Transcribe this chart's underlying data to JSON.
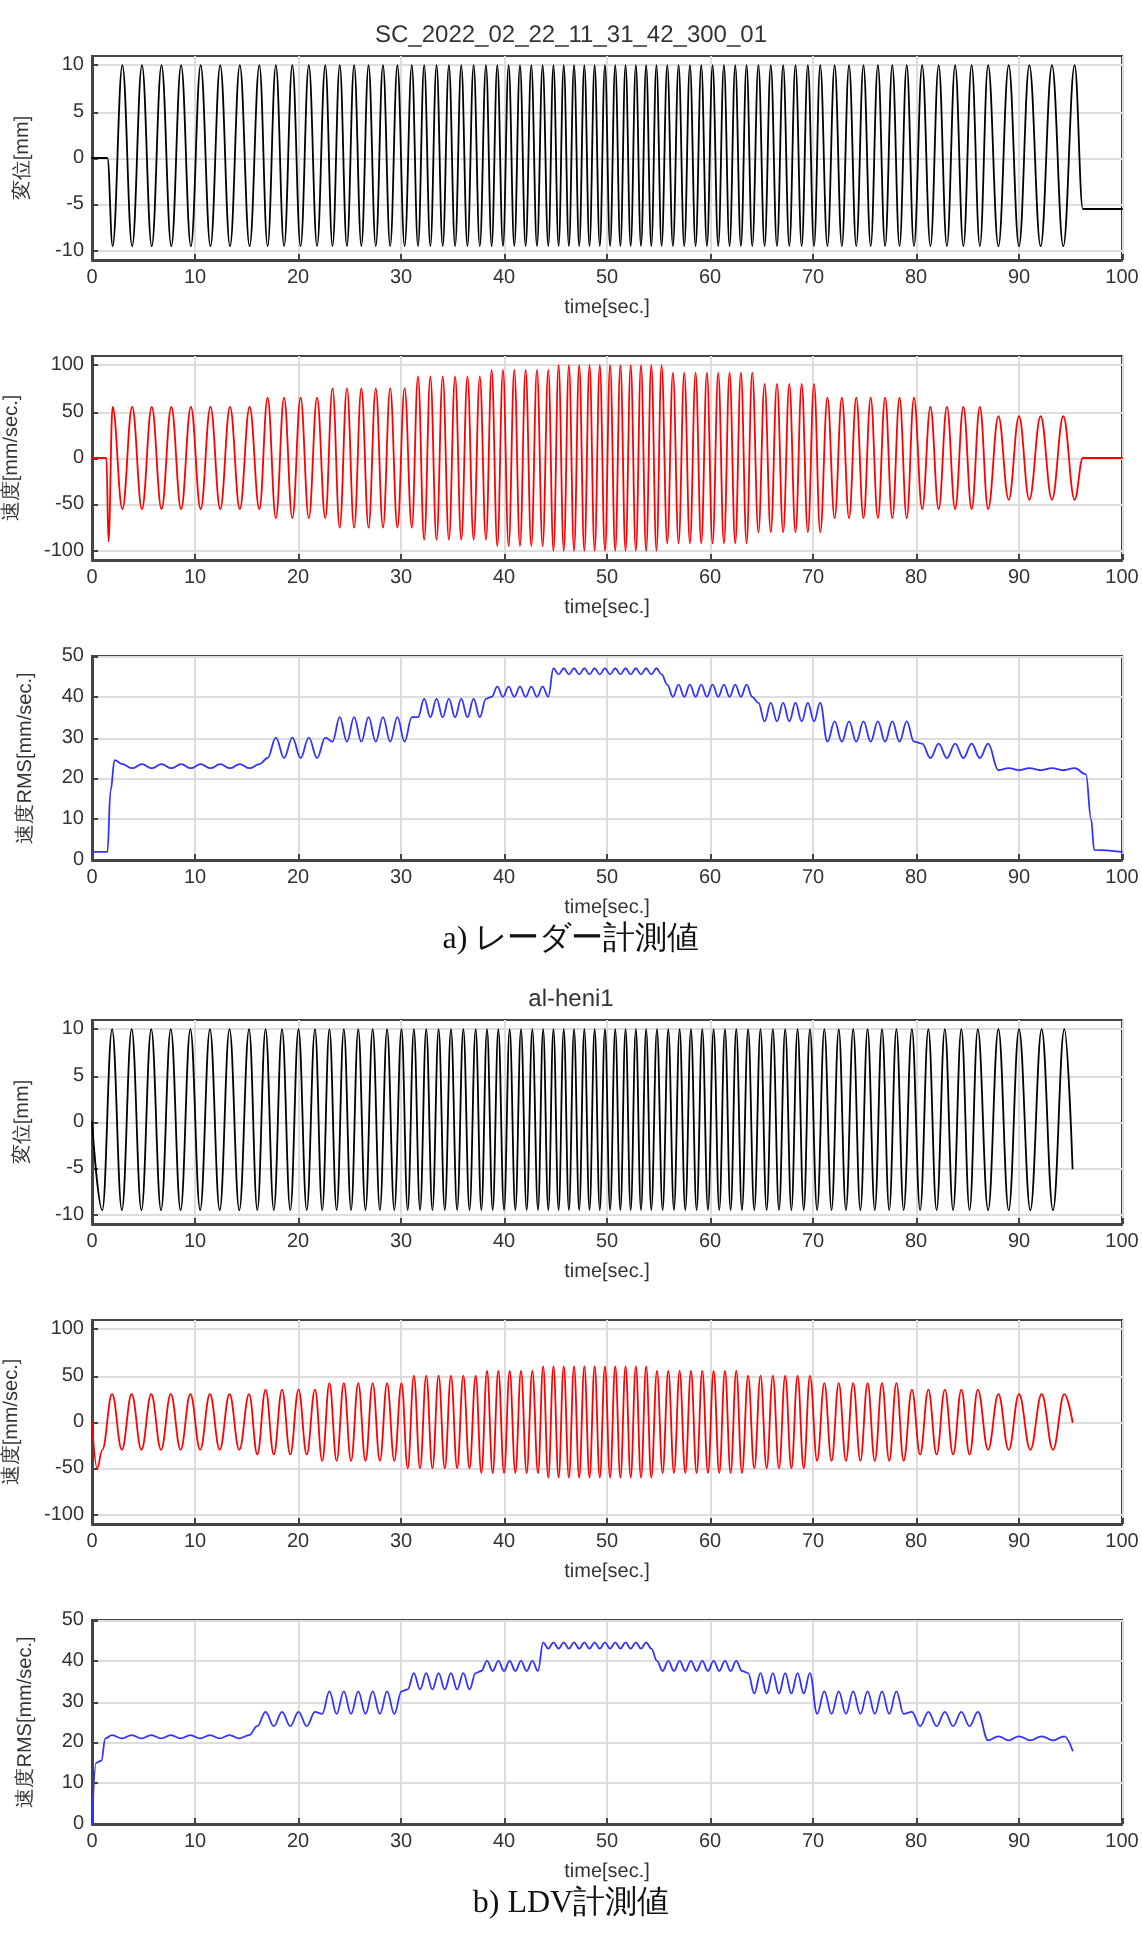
{
  "chart_data": [
    {
      "type": "line",
      "title": "SC_2022_02_22_11_31_42_300_01",
      "xlabel": "time[sec.]",
      "ylabel": "変位[mm]",
      "xlim": [
        0,
        100
      ],
      "xticks": [
        0,
        10,
        20,
        30,
        40,
        50,
        60,
        70,
        80,
        90,
        100
      ],
      "ylim": [
        -11,
        11
      ],
      "yticks": [
        -10,
        -5,
        0,
        5,
        10
      ],
      "grid": true,
      "marker": "none",
      "line_style": "solid",
      "x": [
        0,
        1.5,
        2,
        2.95,
        3.9,
        4.85,
        5.8,
        6.75,
        7.7,
        8.65,
        9.6,
        10.55,
        11.5,
        12.45,
        13.4,
        14.35,
        15.3,
        16.25,
        17.05,
        17.85,
        18.65,
        19.45,
        20.25,
        21.05,
        21.85,
        22.65,
        23.35,
        24.05,
        24.75,
        25.45,
        26.15,
        26.85,
        27.55,
        28.25,
        28.95,
        29.65,
        30.35,
        31.05,
        31.65,
        32.25,
        32.85,
        33.45,
        34.05,
        34.65,
        35.25,
        35.85,
        36.45,
        37.05,
        37.65,
        38.25,
        38.8,
        39.35,
        39.9,
        40.45,
        41,
        41.55,
        42.1,
        42.65,
        43.2,
        43.75,
        44.3,
        44.8,
        45.3,
        45.8,
        46.3,
        46.8,
        47.3,
        47.8,
        48.3,
        48.8,
        49.3,
        49.8,
        50.3,
        50.8,
        51.3,
        51.8,
        52.3,
        52.8,
        53.3,
        53.8,
        54.3,
        54.8,
        55.3,
        55.85,
        56.4,
        56.95,
        57.5,
        58.05,
        58.6,
        59.15,
        59.7,
        60.25,
        60.8,
        61.35,
        61.9,
        62.45,
        63,
        63.55,
        64.1,
        64.7,
        65.3,
        65.9,
        66.5,
        67.1,
        67.7,
        68.3,
        68.9,
        69.5,
        70.1,
        70.7,
        71.4,
        72.1,
        72.8,
        73.5,
        74.2,
        74.9,
        75.6,
        76.3,
        77,
        77.7,
        78.4,
        79.1,
        79.8,
        80.6,
        81.4,
        82.2,
        83,
        83.8,
        84.6,
        85.4,
        86.2,
        87,
        88,
        89,
        90,
        91,
        92.1,
        93.2,
        94.3,
        95.4,
        96.2,
        100
      ],
      "series": [
        {
          "color": "#000000",
          "values": [
            0,
            0,
            -9.5,
            10,
            -9.5,
            10,
            -9.5,
            10,
            -9.5,
            10,
            -9.5,
            10,
            -9.5,
            10,
            -9.5,
            10,
            -9.5,
            10,
            -9.5,
            10,
            -9.5,
            10,
            -9.5,
            10,
            -9.5,
            10,
            -9.5,
            10,
            -9.5,
            10,
            -9.5,
            10,
            -9.5,
            10,
            -9.5,
            10,
            -9.5,
            10,
            -9.5,
            10,
            -9.5,
            10,
            -9.5,
            10,
            -9.5,
            10,
            -9.5,
            10,
            -9.5,
            10,
            -9.5,
            10,
            -9.5,
            10,
            -9.5,
            10,
            -9.5,
            10,
            -9.5,
            10,
            -9.5,
            10,
            -9.5,
            10,
            -9.5,
            10,
            -9.5,
            10,
            -9.5,
            10,
            -9.5,
            10,
            -9.5,
            10,
            -9.5,
            10,
            -9.5,
            10,
            -9.5,
            10,
            -9.5,
            10,
            -9.5,
            10,
            -9.5,
            10,
            -9.5,
            10,
            -9.5,
            10,
            -9.5,
            10,
            -9.5,
            10,
            -9.5,
            10,
            -9.5,
            10,
            -9.5,
            10,
            -9.5,
            10,
            -9.5,
            10,
            -9.5,
            10,
            -9.5,
            10,
            -9.5,
            10,
            -9.5,
            10,
            -9.5,
            10,
            -9.5,
            10,
            -9.5,
            10,
            -9.5,
            10,
            -9.5,
            10,
            -9.5,
            10,
            -9.5,
            10,
            -9.5,
            10,
            -9.5,
            10,
            -9.5,
            10,
            -9.5,
            10,
            -9.5,
            10,
            -9.5,
            10,
            -9.5,
            10,
            -5.5,
            -5.5
          ]
        }
      ]
    },
    {
      "type": "line",
      "xlabel": "time[sec.]",
      "ylabel": "速度[mm/sec.]",
      "xlim": [
        0,
        100
      ],
      "xticks": [
        0,
        10,
        20,
        30,
        40,
        50,
        60,
        70,
        80,
        90,
        100
      ],
      "ylim": [
        -110,
        110
      ],
      "yticks": [
        -100,
        -50,
        0,
        50,
        100
      ],
      "grid": true,
      "marker": "none",
      "line_style": "solid",
      "x": [
        0,
        1.4,
        1.6,
        2,
        2.95,
        3.9,
        4.85,
        5.8,
        6.75,
        7.7,
        8.65,
        9.6,
        10.55,
        11.5,
        12.45,
        13.4,
        14.35,
        15.3,
        16.25,
        17.05,
        17.85,
        18.65,
        19.45,
        20.25,
        21.05,
        21.85,
        22.65,
        23.35,
        24.05,
        24.75,
        25.45,
        26.15,
        26.85,
        27.55,
        28.25,
        28.95,
        29.65,
        30.35,
        31.05,
        31.65,
        32.25,
        32.85,
        33.45,
        34.05,
        34.65,
        35.25,
        35.85,
        36.45,
        37.05,
        37.65,
        38.25,
        38.8,
        39.35,
        39.9,
        40.45,
        41,
        41.55,
        42.1,
        42.65,
        43.2,
        43.75,
        44.3,
        44.8,
        45.3,
        45.8,
        46.3,
        46.8,
        47.3,
        47.8,
        48.3,
        48.8,
        49.3,
        49.8,
        50.3,
        50.8,
        51.3,
        51.8,
        52.3,
        52.8,
        53.3,
        53.8,
        54.3,
        54.8,
        55.3,
        55.85,
        56.4,
        56.95,
        57.5,
        58.05,
        58.6,
        59.15,
        59.7,
        60.25,
        60.8,
        61.35,
        61.9,
        62.45,
        63,
        63.55,
        64.1,
        64.7,
        65.3,
        65.9,
        66.5,
        67.1,
        67.7,
        68.3,
        68.9,
        69.5,
        70.1,
        70.7,
        71.4,
        72.1,
        72.8,
        73.5,
        74.2,
        74.9,
        75.6,
        76.3,
        77,
        77.7,
        78.4,
        79.1,
        79.8,
        80.6,
        81.4,
        82.2,
        83,
        83.8,
        84.6,
        85.4,
        86.2,
        87,
        88,
        89,
        90,
        91,
        92.1,
        93.2,
        94.3,
        95.4,
        96.2,
        100
      ],
      "series": [
        {
          "color": "#ff0000",
          "values": [
            0,
            0,
            -90,
            55,
            -55,
            55,
            -55,
            55,
            -55,
            55,
            -55,
            55,
            -55,
            55,
            -55,
            55,
            -55,
            55,
            -55,
            65,
            -65,
            65,
            -65,
            65,
            -65,
            65,
            -65,
            75,
            -75,
            75,
            -75,
            75,
            -75,
            75,
            -75,
            75,
            -75,
            75,
            -75,
            88,
            -88,
            88,
            -88,
            88,
            -88,
            88,
            -88,
            88,
            -88,
            88,
            -88,
            95,
            -95,
            95,
            -95,
            95,
            -95,
            95,
            -95,
            95,
            -95,
            95,
            -100,
            100,
            -100,
            100,
            -100,
            100,
            -100,
            100,
            -100,
            100,
            -100,
            100,
            -100,
            100,
            -100,
            100,
            -100,
            100,
            -100,
            100,
            -100,
            100,
            -92,
            92,
            -92,
            92,
            -92,
            92,
            -92,
            92,
            -92,
            92,
            -92,
            92,
            -92,
            92,
            -92,
            92,
            -80,
            80,
            -80,
            80,
            -80,
            80,
            -80,
            80,
            -80,
            80,
            -80,
            65,
            -65,
            65,
            -65,
            65,
            -65,
            65,
            -65,
            65,
            -65,
            65,
            -65,
            65,
            -55,
            55,
            -55,
            55,
            -55,
            55,
            -55,
            55,
            -55,
            45,
            -45,
            45,
            -45,
            45,
            -45,
            45,
            -45,
            0,
            0
          ]
        }
      ]
    },
    {
      "type": "line",
      "xlabel": "time[sec.]",
      "ylabel": "速度RMS[mm/sec.]",
      "xlim": [
        0,
        100
      ],
      "xticks": [
        0,
        10,
        20,
        30,
        40,
        50,
        60,
        70,
        80,
        90,
        100
      ],
      "ylim": [
        0,
        50
      ],
      "yticks": [
        0,
        10,
        20,
        30,
        40,
        50
      ],
      "grid": true,
      "marker": "none",
      "line_style": "solid",
      "annotations": [
        "a) レーダー計測値"
      ],
      "x": [
        0,
        1.5,
        1.8,
        2.2,
        2.95,
        3.9,
        4.85,
        5.8,
        6.75,
        7.7,
        8.65,
        9.6,
        10.55,
        11.5,
        12.45,
        13.4,
        14.35,
        15.3,
        16.25,
        17.05,
        17.85,
        18.65,
        19.45,
        20.25,
        21.05,
        21.85,
        22.65,
        23.35,
        24.05,
        24.75,
        25.45,
        26.15,
        26.85,
        27.55,
        28.25,
        28.95,
        29.65,
        30.35,
        31.05,
        31.65,
        32.25,
        32.85,
        33.45,
        34.05,
        34.65,
        35.25,
        35.85,
        36.45,
        37.05,
        37.65,
        38.25,
        38.8,
        39.35,
        39.9,
        40.45,
        41,
        41.55,
        42.1,
        42.65,
        43.2,
        43.75,
        44.3,
        44.8,
        45.3,
        45.8,
        46.3,
        46.8,
        47.3,
        47.8,
        48.3,
        48.8,
        49.3,
        49.8,
        50.3,
        50.8,
        51.3,
        51.8,
        52.3,
        52.8,
        53.3,
        53.8,
        54.3,
        54.8,
        55.3,
        55.85,
        56.4,
        56.95,
        57.5,
        58.05,
        58.6,
        59.15,
        59.7,
        60.25,
        60.8,
        61.35,
        61.9,
        62.45,
        63,
        63.55,
        64.1,
        64.7,
        65.3,
        65.9,
        66.5,
        67.1,
        67.7,
        68.3,
        68.9,
        69.5,
        70.1,
        70.7,
        71.4,
        72.1,
        72.8,
        73.5,
        74.2,
        74.9,
        75.6,
        76.3,
        77,
        77.7,
        78.4,
        79.1,
        79.8,
        80.6,
        81.4,
        82.2,
        83,
        83.8,
        84.6,
        85.4,
        86.2,
        87,
        88,
        89,
        90,
        91,
        92.1,
        93.2,
        94.3,
        95.4,
        96.5,
        97,
        97.3,
        100
      ],
      "series": [
        {
          "color": "#3333ff",
          "values": [
            2,
            2,
            17,
            24.5,
            23.5,
            22.5,
            23.5,
            22.5,
            23.5,
            22.5,
            23.5,
            22.5,
            23.5,
            22.5,
            23.5,
            22.5,
            23.5,
            22.5,
            23.5,
            25,
            30,
            25,
            30,
            25,
            30,
            25,
            30,
            29,
            35,
            29,
            35,
            29,
            35,
            29,
            35,
            29,
            35,
            29,
            35,
            35,
            39.5,
            35,
            39.5,
            35,
            39.5,
            35,
            39.5,
            35,
            39.5,
            35,
            39.5,
            40,
            42.5,
            40,
            42.5,
            40,
            42.5,
            40,
            42.5,
            40,
            42.5,
            40,
            47,
            45.5,
            47,
            45.5,
            47,
            45.5,
            47,
            45.5,
            47,
            45.5,
            47,
            45.5,
            47,
            45.5,
            47,
            45.5,
            47,
            45.5,
            47,
            45.5,
            47,
            45.5,
            43,
            40,
            43,
            40,
            43,
            40,
            43,
            40,
            43,
            40,
            43,
            40,
            43,
            40,
            43,
            40,
            38.5,
            34,
            38.5,
            34,
            38.5,
            34,
            38.5,
            34,
            38.5,
            34,
            38.5,
            29,
            34,
            29,
            34,
            29,
            34,
            29,
            34,
            29,
            34,
            29,
            34,
            29,
            28.5,
            25,
            28.5,
            25,
            28.5,
            25,
            28.5,
            25,
            28.5,
            22,
            22.5,
            22,
            22.5,
            22,
            22.5,
            22,
            22.5,
            21,
            10,
            2.5,
            2
          ]
        }
      ]
    },
    {
      "type": "line",
      "title": "al-heni1",
      "xlabel": "time[sec.]",
      "ylabel": "変位[mm]",
      "xlim": [
        0,
        100
      ],
      "xticks": [
        0,
        10,
        20,
        30,
        40,
        50,
        60,
        70,
        80,
        90,
        100
      ],
      "ylim": [
        -11,
        11
      ],
      "yticks": [
        -10,
        -5,
        0,
        5,
        10
      ],
      "grid": true,
      "marker": "none",
      "line_style": "solid",
      "x": [
        0,
        1,
        1.95,
        2.9,
        3.85,
        4.8,
        5.75,
        6.7,
        7.65,
        8.6,
        9.55,
        10.5,
        11.45,
        12.4,
        13.35,
        14.3,
        15.25,
        16.05,
        16.85,
        17.65,
        18.45,
        19.25,
        20.05,
        20.85,
        21.65,
        22.35,
        23.05,
        23.75,
        24.45,
        25.15,
        25.85,
        26.55,
        27.25,
        27.95,
        28.65,
        29.35,
        30.05,
        30.65,
        31.25,
        31.85,
        32.45,
        33.05,
        33.65,
        34.25,
        34.85,
        35.45,
        36.05,
        36.65,
        37.25,
        37.8,
        38.35,
        38.9,
        39.45,
        40,
        40.55,
        41.1,
        41.65,
        42.2,
        42.75,
        43.3,
        43.8,
        44.3,
        44.8,
        45.3,
        45.8,
        46.3,
        46.8,
        47.3,
        47.8,
        48.3,
        48.8,
        49.3,
        49.8,
        50.3,
        50.8,
        51.3,
        51.8,
        52.3,
        52.8,
        53.3,
        53.8,
        54.3,
        54.85,
        55.4,
        55.95,
        56.5,
        57.05,
        57.6,
        58.15,
        58.7,
        59.25,
        59.8,
        60.35,
        60.9,
        61.45,
        62,
        62.55,
        63.1,
        63.7,
        64.3,
        64.9,
        65.5,
        66.1,
        66.7,
        67.3,
        67.9,
        68.5,
        69.1,
        69.7,
        70.4,
        71.1,
        71.8,
        72.5,
        73.2,
        73.9,
        74.6,
        75.3,
        76,
        76.7,
        77.4,
        78.1,
        78.8,
        79.6,
        80.4,
        81.2,
        82,
        82.8,
        83.6,
        84.4,
        85.2,
        86,
        87,
        88,
        89,
        90,
        91.1,
        92.2,
        93.3,
        94.4,
        95.2
      ],
      "series": [
        {
          "color": "#000000",
          "values": [
            0,
            -9.5,
            10,
            -9.5,
            10,
            -9.5,
            10,
            -9.5,
            10,
            -9.5,
            10,
            -9.5,
            10,
            -9.5,
            10,
            -9.5,
            10,
            -9.5,
            10,
            -9.5,
            10,
            -9.5,
            10,
            -9.5,
            10,
            -9.5,
            10,
            -9.5,
            10,
            -9.5,
            10,
            -9.5,
            10,
            -9.5,
            10,
            -9.5,
            10,
            -9.5,
            10,
            -9.5,
            10,
            -9.5,
            10,
            -9.5,
            10,
            -9.5,
            10,
            -9.5,
            10,
            -9.5,
            10,
            -9.5,
            10,
            -9.5,
            10,
            -9.5,
            10,
            -9.5,
            10,
            -9.5,
            10,
            -9.5,
            10,
            -9.5,
            10,
            -9.5,
            10,
            -9.5,
            10,
            -9.5,
            10,
            -9.5,
            10,
            -9.5,
            10,
            -9.5,
            10,
            -9.5,
            10,
            -9.5,
            10,
            -9.5,
            10,
            -9.5,
            10,
            -9.5,
            10,
            -9.5,
            10,
            -9.5,
            10,
            -9.5,
            10,
            -9.5,
            10,
            -9.5,
            10,
            -9.5,
            10,
            -9.5,
            10,
            -9.5,
            10,
            -9.5,
            10,
            -9.5,
            10,
            -9.5,
            10,
            -9.5,
            10,
            -9.5,
            10,
            -9.5,
            10,
            -9.5,
            10,
            -9.5,
            10,
            -9.5,
            10,
            -9.5,
            10,
            -9.5,
            10,
            -9.5,
            10,
            -9.5,
            10,
            -9.5,
            10,
            -9.5,
            10,
            -9.5,
            10,
            -9.5,
            10,
            -9.5,
            10,
            -5
          ]
        }
      ]
    },
    {
      "type": "line",
      "xlabel": "time[sec.]",
      "ylabel": "速度[mm/sec.]",
      "xlim": [
        0,
        100
      ],
      "xticks": [
        0,
        10,
        20,
        30,
        40,
        50,
        60,
        70,
        80,
        90,
        100
      ],
      "ylim": [
        -110,
        110
      ],
      "yticks": [
        -100,
        -50,
        0,
        50,
        100
      ],
      "grid": true,
      "marker": "none",
      "line_style": "solid",
      "x": [
        0,
        0.5,
        1,
        1.95,
        2.9,
        3.85,
        4.8,
        5.75,
        6.7,
        7.65,
        8.6,
        9.55,
        10.5,
        11.45,
        12.4,
        13.35,
        14.3,
        15.25,
        16.05,
        16.85,
        17.65,
        18.45,
        19.25,
        20.05,
        20.85,
        21.65,
        22.35,
        23.05,
        23.75,
        24.45,
        25.15,
        25.85,
        26.55,
        27.25,
        27.95,
        28.65,
        29.35,
        30.05,
        30.65,
        31.25,
        31.85,
        32.45,
        33.05,
        33.65,
        34.25,
        34.85,
        35.45,
        36.05,
        36.65,
        37.25,
        37.8,
        38.35,
        38.9,
        39.45,
        40,
        40.55,
        41.1,
        41.65,
        42.2,
        42.75,
        43.3,
        43.8,
        44.3,
        44.8,
        45.3,
        45.8,
        46.3,
        46.8,
        47.3,
        47.8,
        48.3,
        48.8,
        49.3,
        49.8,
        50.3,
        50.8,
        51.3,
        51.8,
        52.3,
        52.8,
        53.3,
        53.8,
        54.3,
        54.85,
        55.4,
        55.95,
        56.5,
        57.05,
        57.6,
        58.15,
        58.7,
        59.25,
        59.8,
        60.35,
        60.9,
        61.45,
        62,
        62.55,
        63.1,
        63.7,
        64.3,
        64.9,
        65.5,
        66.1,
        66.7,
        67.3,
        67.9,
        68.5,
        69.1,
        69.7,
        70.4,
        71.1,
        71.8,
        72.5,
        73.2,
        73.9,
        74.6,
        75.3,
        76,
        76.7,
        77.4,
        78.1,
        78.8,
        79.6,
        80.4,
        81.2,
        82,
        82.8,
        83.6,
        84.4,
        85.2,
        86,
        87,
        88,
        89,
        90,
        91.1,
        92.2,
        93.3,
        94.4,
        95.2
      ],
      "series": [
        {
          "color": "#ff0000",
          "values": [
            0,
            -50,
            -30,
            30,
            -30,
            30,
            -30,
            30,
            -30,
            30,
            -30,
            30,
            -30,
            30,
            -30,
            30,
            -30,
            30,
            -35,
            35,
            -35,
            35,
            -35,
            35,
            -35,
            35,
            -42,
            42,
            -42,
            42,
            -42,
            42,
            -42,
            42,
            -42,
            42,
            -42,
            42,
            -50,
            50,
            -50,
            50,
            -50,
            50,
            -50,
            50,
            -50,
            50,
            -50,
            50,
            -55,
            55,
            -55,
            55,
            -55,
            55,
            -55,
            55,
            -55,
            55,
            -55,
            60,
            -60,
            60,
            -60,
            60,
            -60,
            60,
            -60,
            60,
            -60,
            60,
            -60,
            60,
            -60,
            60,
            -60,
            60,
            -60,
            60,
            -60,
            60,
            -60,
            55,
            -55,
            55,
            -55,
            55,
            -55,
            55,
            -55,
            55,
            -55,
            55,
            -55,
            55,
            -55,
            55,
            -55,
            50,
            -50,
            50,
            -50,
            50,
            -50,
            50,
            -50,
            50,
            -50,
            50,
            -42,
            42,
            -42,
            42,
            -42,
            42,
            -42,
            42,
            -42,
            42,
            -42,
            42,
            -42,
            35,
            -35,
            35,
            -35,
            35,
            -35,
            35,
            -35,
            35,
            -30,
            30,
            -30,
            30,
            -30,
            30,
            -30,
            30,
            0
          ]
        }
      ]
    },
    {
      "type": "line",
      "xlabel": "time[sec.]",
      "ylabel": "速度RMS[mm/sec.]",
      "xlim": [
        0,
        100
      ],
      "xticks": [
        0,
        10,
        20,
        30,
        40,
        50,
        60,
        70,
        80,
        90,
        100
      ],
      "ylim": [
        0,
        50
      ],
      "yticks": [
        0,
        10,
        20,
        30,
        40,
        50
      ],
      "grid": true,
      "marker": "none",
      "line_style": "solid",
      "annotations": [
        "b) LDV計測値"
      ],
      "x": [
        0,
        0.4,
        0.9,
        1.3,
        1.95,
        2.9,
        3.85,
        4.8,
        5.75,
        6.7,
        7.65,
        8.6,
        9.55,
        10.5,
        11.45,
        12.4,
        13.35,
        14.3,
        15.25,
        16.05,
        16.85,
        17.65,
        18.45,
        19.25,
        20.05,
        20.85,
        21.65,
        22.35,
        23.05,
        23.75,
        24.45,
        25.15,
        25.85,
        26.55,
        27.25,
        27.95,
        28.65,
        29.35,
        30.05,
        30.65,
        31.25,
        31.85,
        32.45,
        33.05,
        33.65,
        34.25,
        34.85,
        35.45,
        36.05,
        36.65,
        37.25,
        37.8,
        38.35,
        38.9,
        39.45,
        40,
        40.55,
        41.1,
        41.65,
        42.2,
        42.75,
        43.3,
        43.8,
        44.3,
        44.8,
        45.3,
        45.8,
        46.3,
        46.8,
        47.3,
        47.8,
        48.3,
        48.8,
        49.3,
        49.8,
        50.3,
        50.8,
        51.3,
        51.8,
        52.3,
        52.8,
        53.3,
        53.8,
        54.3,
        54.85,
        55.4,
        55.95,
        56.5,
        57.05,
        57.6,
        58.15,
        58.7,
        59.25,
        59.8,
        60.35,
        60.9,
        61.45,
        62,
        62.55,
        63.1,
        63.7,
        64.3,
        64.9,
        65.5,
        66.1,
        66.7,
        67.3,
        67.9,
        68.5,
        69.1,
        69.7,
        70.4,
        71.1,
        71.8,
        72.5,
        73.2,
        73.9,
        74.6,
        75.3,
        76,
        76.7,
        77.4,
        78.1,
        78.8,
        79.6,
        80.4,
        81.2,
        82,
        82.8,
        83.6,
        84.4,
        85.2,
        86,
        87,
        88,
        89,
        90,
        91.1,
        92.2,
        93.3,
        94.4,
        95.2
      ],
      "series": [
        {
          "color": "#3333ff",
          "values": [
            0,
            15,
            15.5,
            21,
            21.8,
            21,
            21.8,
            21,
            21.8,
            21,
            21.8,
            21,
            21.8,
            21,
            21.8,
            21,
            21.8,
            21,
            21.8,
            24,
            27.5,
            24,
            27.5,
            24,
            27.5,
            24,
            27.5,
            27,
            32.5,
            27,
            32.5,
            27,
            32.5,
            27,
            32.5,
            27,
            32.5,
            27,
            32.5,
            33,
            37,
            33,
            37,
            33,
            37,
            33,
            37,
            33,
            37,
            33,
            37,
            37.5,
            40,
            37.5,
            40,
            37.5,
            40,
            37.5,
            40,
            37.5,
            40,
            37.5,
            44.5,
            43,
            44.5,
            43,
            44.5,
            43,
            44.5,
            43,
            44.5,
            43,
            44.5,
            43,
            44.5,
            43,
            44.5,
            43,
            44.5,
            43,
            44.5,
            43,
            44.5,
            43,
            40,
            37.5,
            40,
            37.5,
            40,
            37.5,
            40,
            37.5,
            40,
            37.5,
            40,
            37.5,
            40,
            37.5,
            40,
            37.5,
            37,
            32,
            37,
            32,
            37,
            32,
            37,
            32,
            37,
            32,
            37,
            27,
            32.5,
            27,
            32.5,
            27,
            32.5,
            27,
            32.5,
            27,
            32.5,
            27,
            32.5,
            27,
            27.5,
            24,
            27.5,
            24,
            27.5,
            24,
            27.5,
            24,
            27.5,
            20.5,
            21.5,
            20.5,
            21.5,
            20.5,
            21.5,
            20.5,
            21.5,
            18
          ]
        }
      ]
    }
  ]
}
